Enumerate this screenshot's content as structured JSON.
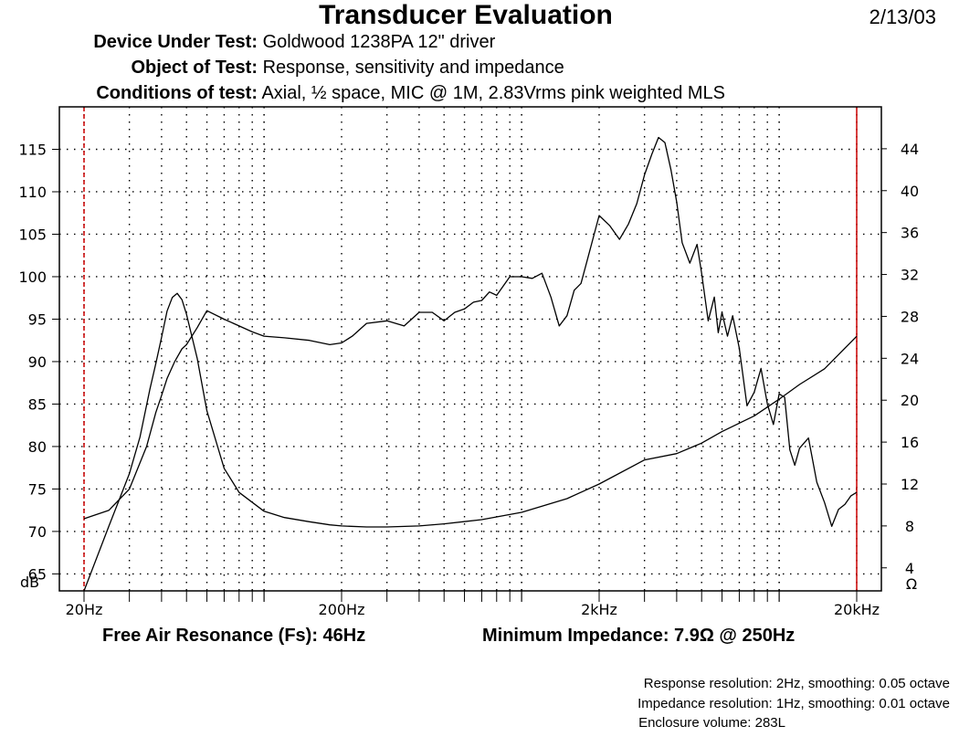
{
  "header": {
    "title": "Transducer Evaluation",
    "date": "2/13/03",
    "rows": [
      {
        "key": "Device Under Test:",
        "value": "Goldwood 1238PA 12\" driver"
      },
      {
        "key": "Object of Test:",
        "value": "Response, sensitivity and impedance"
      },
      {
        "key": "Conditions of test:",
        "value": "Axial, ½ space, MIC @ 1M, 2.83Vrms pink weighted MLS"
      }
    ]
  },
  "footer": {
    "fs": "Free Air Resonance (Fs): 46Hz",
    "min_impedance": "Minimum Impedance: 7.9Ω @ 250Hz",
    "notes": [
      "Response resolution: 2Hz, smoothing: 0.05 octave",
      "Impedance resolution: 1Hz, smoothing: 0.01 octave",
      "Enclosure volume: 283L"
    ]
  },
  "chart_data": {
    "type": "line",
    "x_scale": "log",
    "xlim": [
      20,
      20000
    ],
    "x_tick_labels": [
      {
        "value": 20,
        "label": "20Hz"
      },
      {
        "value": 200,
        "label": "200Hz"
      },
      {
        "value": 2000,
        "label": "2kHz"
      },
      {
        "value": 20000,
        "label": "20kHz"
      }
    ],
    "y_left": {
      "unit_label": "dB",
      "range": [
        63,
        120
      ],
      "ticks": [
        65,
        70,
        75,
        80,
        85,
        90,
        95,
        100,
        105,
        110,
        115
      ]
    },
    "y_right": {
      "unit_label": "Ω",
      "range": [
        1.8,
        48
      ],
      "ticks": [
        4,
        8,
        12,
        16,
        20,
        24,
        28,
        32,
        36,
        40,
        44
      ]
    },
    "grid": "dotted",
    "markers": [
      20,
      20000
    ],
    "marker_color": "#cc0000",
    "series": [
      {
        "axis": "left",
        "x": [
          20,
          25,
          30,
          35,
          38,
          40,
          42,
          45,
          48,
          50,
          55,
          60,
          70,
          80,
          90,
          100,
          120,
          150,
          180,
          200,
          220,
          250,
          300,
          350,
          400,
          450,
          500,
          550,
          600,
          650,
          700,
          750,
          800,
          900,
          1000,
          1100,
          1200,
          1300,
          1400,
          1500,
          1600,
          1700,
          1800,
          2000,
          2200,
          2400,
          2600,
          2800,
          3000,
          3200,
          3400,
          3600,
          3800,
          4000,
          4200,
          4500,
          4800,
          5000,
          5300,
          5600,
          5800,
          6000,
          6300,
          6600,
          7000,
          7500,
          8000,
          8500,
          9000,
          9500,
          10000,
          10500,
          11000,
          11500,
          12000,
          13000,
          14000,
          15000,
          16000,
          17000,
          18000,
          19000,
          20000
        ],
        "y": [
          71.5,
          72.5,
          75,
          80,
          84,
          86,
          88,
          90,
          91.5,
          92,
          94,
          96,
          95,
          94.2,
          93.5,
          93,
          92.8,
          92.5,
          92,
          92.2,
          93,
          94.5,
          94.8,
          94.2,
          95.8,
          95.8,
          94.8,
          95.8,
          96.2,
          97,
          97.2,
          98.2,
          97.8,
          100,
          100,
          99.8,
          100.4,
          97.6,
          94.2,
          95.4,
          98.4,
          99.2,
          102,
          107.2,
          106,
          104.4,
          106.2,
          108.6,
          112,
          114.4,
          116.4,
          115.8,
          112.6,
          108.8,
          104,
          101.6,
          103.8,
          100.4,
          94.8,
          97.6,
          93.4,
          95.8,
          93,
          95.4,
          91.6,
          84.8,
          86.4,
          89.2,
          85,
          82.6,
          86.2,
          85.8,
          79.6,
          77.8,
          79.8,
          81,
          75.8,
          73.4,
          70.6,
          72.6,
          73.2,
          74.2,
          74.6
        ]
      },
      {
        "axis": "right",
        "x": [
          20,
          25,
          30,
          33,
          36,
          38,
          40,
          42,
          44,
          46,
          48,
          50,
          55,
          60,
          70,
          80,
          100,
          120,
          150,
          180,
          200,
          250,
          300,
          400,
          500,
          700,
          1000,
          1500,
          2000,
          3000,
          4000,
          5000,
          6000,
          8000,
          10000,
          12000,
          15000,
          20000
        ],
        "y": [
          1.8,
          8,
          13,
          16.5,
          21,
          23.5,
          26,
          28.5,
          29.8,
          30.2,
          29.6,
          28.2,
          24,
          19,
          13.5,
          11.2,
          9.4,
          8.8,
          8.4,
          8.1,
          8.0,
          7.9,
          7.9,
          8.0,
          8.2,
          8.6,
          9.3,
          10.6,
          12.0,
          14.3,
          14.9,
          15.9,
          17.0,
          18.5,
          20.1,
          21.5,
          23.0,
          26.1
        ]
      }
    ]
  }
}
